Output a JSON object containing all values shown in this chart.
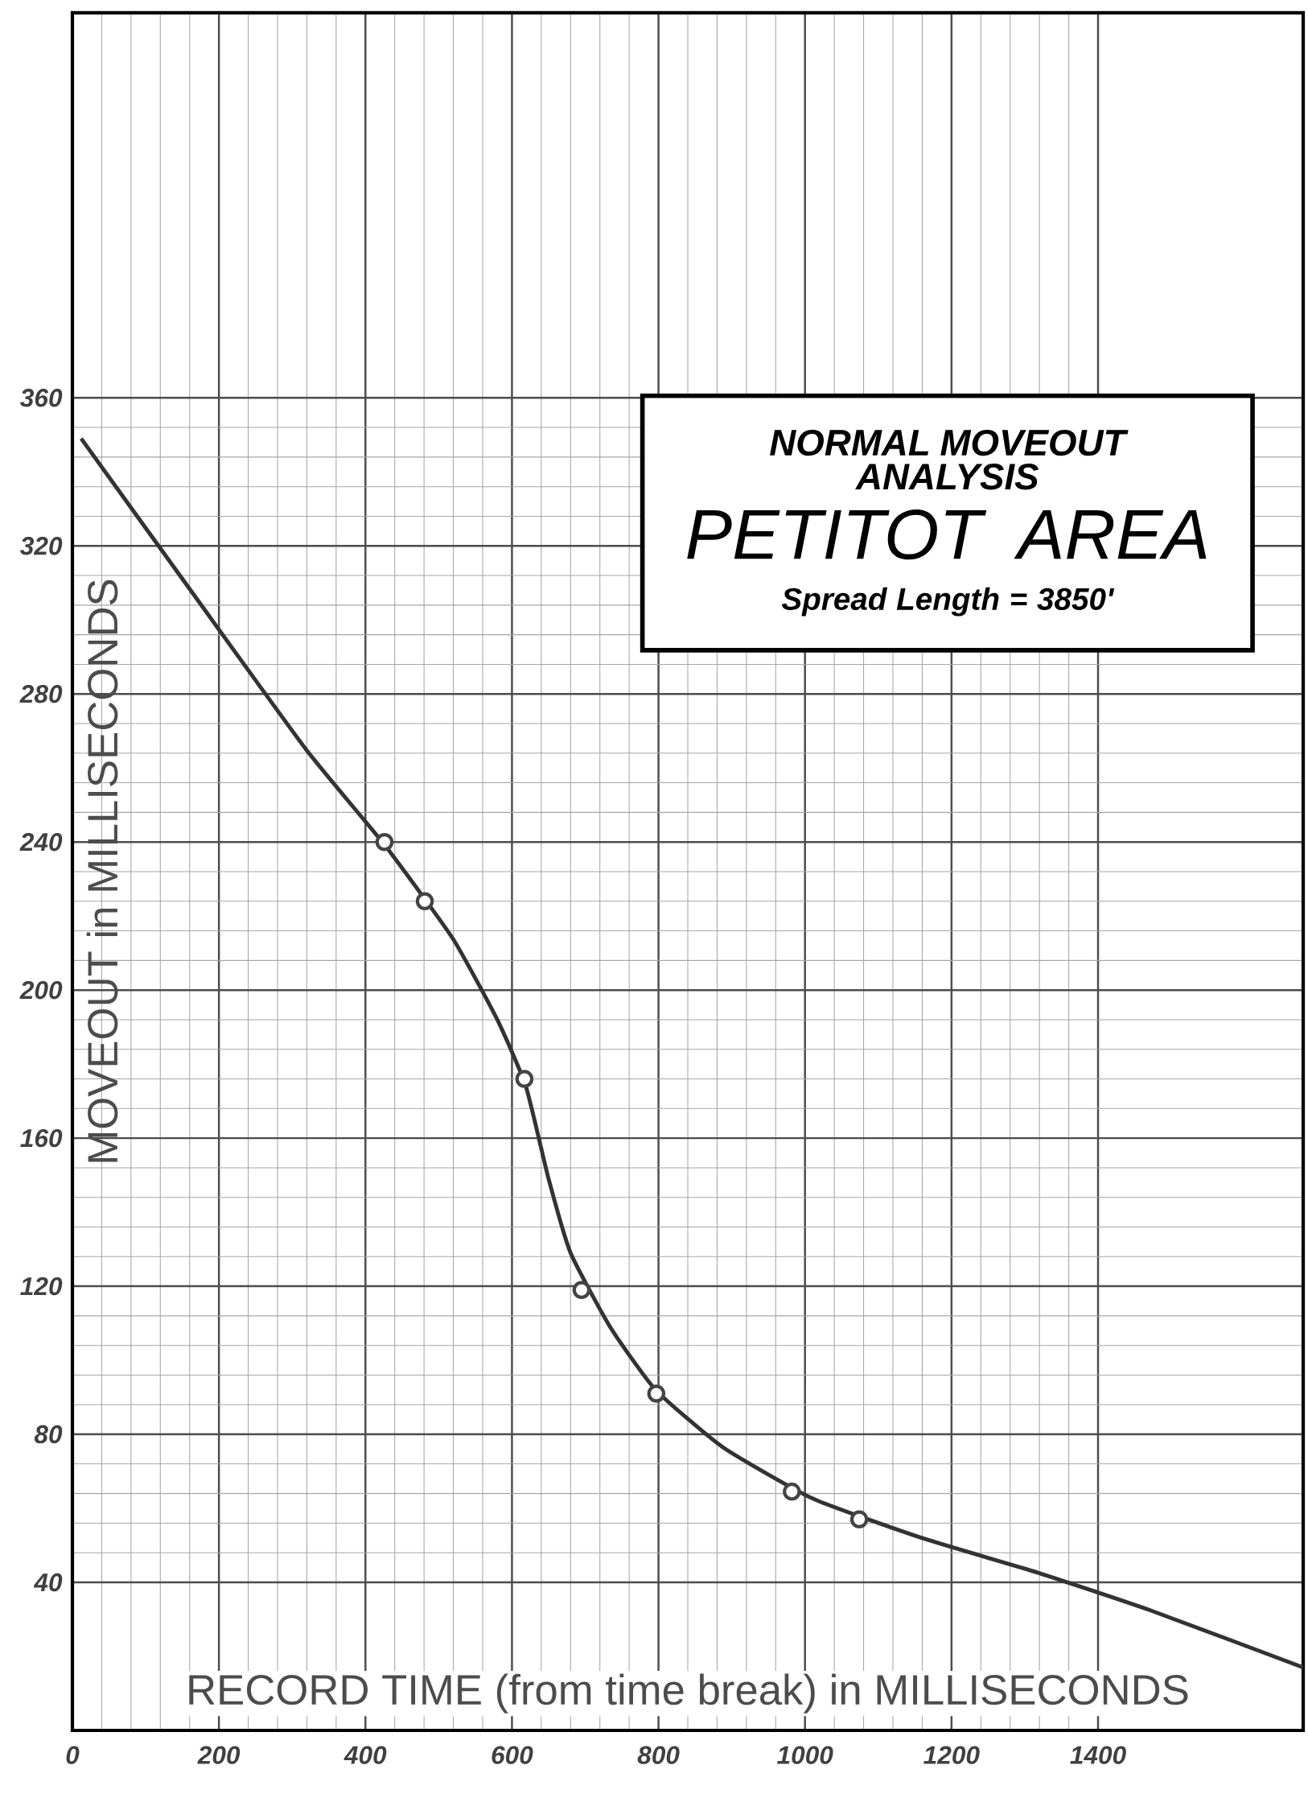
{
  "chart_data": {
    "type": "line",
    "title": "NORMAL MOVEOUT ANALYSIS",
    "subtitle": "PETITOT AREA",
    "annotations": [
      "Spread Length = 3850'"
    ],
    "xlabel": "RECORD TIME (from time break) in MILLISECONDS",
    "ylabel": "MOVEOUT in MILLISECONDS",
    "xlim": [
      0,
      1680
    ],
    "ylim": [
      0,
      464
    ],
    "xticks": [
      0,
      200,
      400,
      600,
      800,
      1000,
      1200,
      1400
    ],
    "yticks": [
      40,
      80,
      120,
      160,
      200,
      240,
      280,
      320,
      360
    ],
    "grid": true,
    "series": [
      {
        "color": "#333333",
        "marker": "none",
        "x": [
          12,
          165,
          319,
          427,
          519,
          580,
          619,
          650,
          680,
          734,
          796,
          888,
          1011,
          1164,
          1318,
          1472,
          1680
        ],
        "values": [
          349,
          307,
          265,
          239,
          214,
          192,
          174,
          149,
          129,
          109,
          92,
          76.5,
          62.6,
          51.7,
          42.6,
          32.4,
          17
        ]
      },
      {
        "type": "scatter",
        "color": "#444444",
        "marker": "circle",
        "x": [
          426,
          481,
          617,
          695,
          797,
          982,
          1074
        ],
        "values": [
          240,
          224,
          176,
          119,
          91,
          64.5,
          57
        ]
      }
    ]
  }
}
